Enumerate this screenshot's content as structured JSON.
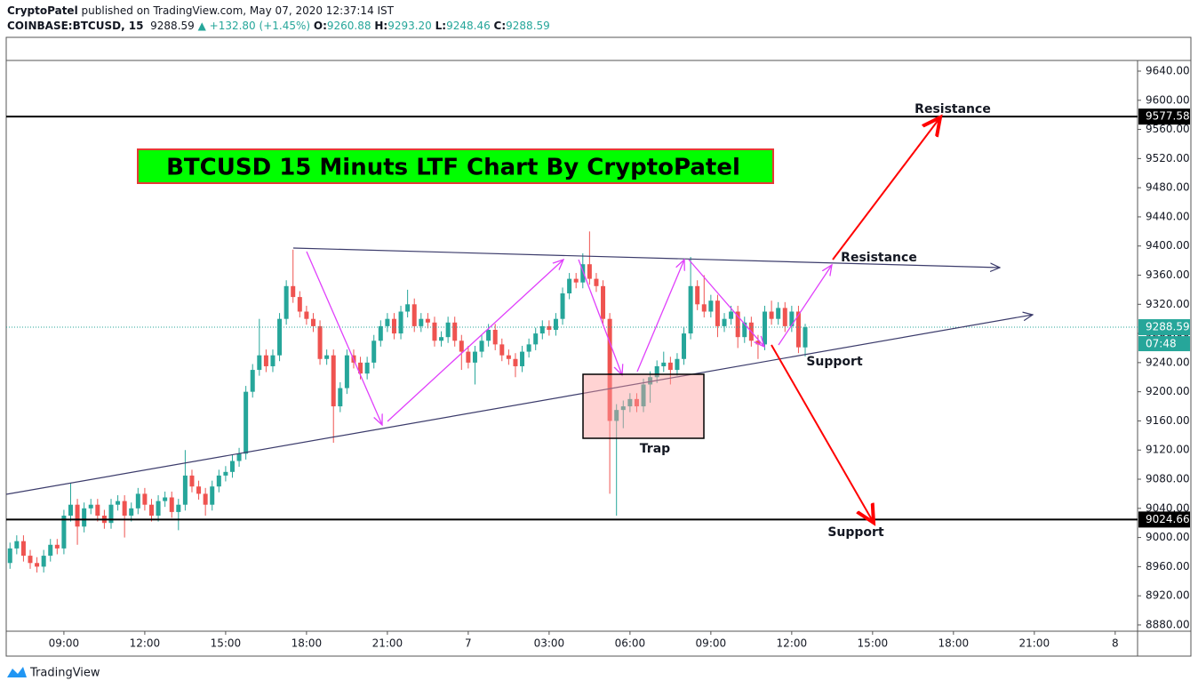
{
  "header": {
    "author": "CryptoPatel",
    "published": "published on TradingView.com, May 07, 2020 12:37:14 IST",
    "symbol": "COINBASE:BTCUSD, 15",
    "price": "9288.59",
    "change": "▲ +132.80 (+1.45%)",
    "o_label": "O:",
    "o": "9260.88",
    "h_label": "H:",
    "h": "9293.20",
    "l_label": "L:",
    "l": "9248.46",
    "c_label": "C:",
    "c": "9288.59"
  },
  "footer": {
    "brand": "TradingView"
  },
  "chart_data": {
    "type": "candlestick",
    "title": "BTCUSD 15 Minuts LTF Chart By CryptoPatel",
    "annotations": [
      "Resistance",
      "Resistance",
      "Support",
      "Support",
      "Trap"
    ],
    "x": [
      6.75,
      7,
      7.25,
      7.5,
      7.75,
      8,
      8.25,
      8.5,
      8.75,
      9,
      9.25,
      9.5,
      9.75,
      10,
      10.25,
      10.5,
      10.75,
      11,
      11.25,
      11.5,
      11.75,
      12,
      12.25,
      12.5,
      12.75,
      13,
      13.25,
      13.5,
      13.75,
      14,
      14.25,
      14.5,
      14.75,
      15,
      15.25,
      15.5,
      15.75,
      16,
      16.25,
      16.5,
      16.75,
      17,
      17.25,
      17.5,
      17.75,
      18,
      18.25,
      18.5,
      18.75,
      19,
      19.25,
      19.5,
      19.75,
      20,
      20.25,
      20.5,
      20.75,
      21,
      21.25,
      21.5,
      21.75,
      22,
      22.25,
      22.5,
      22.75,
      23,
      23.25,
      23.5,
      23.75,
      24,
      24.25,
      24.5,
      24.75,
      25,
      25.25,
      25.5,
      25.75,
      26,
      26.25,
      26.5,
      26.75,
      27,
      27.25,
      27.5,
      27.75,
      28,
      28.25,
      28.5,
      28.75,
      29,
      29.25,
      29.5,
      29.75,
      30,
      30.25,
      30.5,
      30.75,
      31,
      31.25,
      31.5,
      31.75,
      32,
      32.25,
      32.5,
      32.75,
      33,
      33.25,
      33.5,
      33.75,
      34,
      34.25,
      34.5,
      34.75,
      35,
      35.25,
      35.5,
      35.75,
      36,
      36.25,
      36.5
    ],
    "open": [
      8975,
      8965,
      8985,
      8995,
      8975,
      8965,
      8960,
      8975,
      8990,
      8985,
      9030,
      9045,
      9015,
      9040,
      9045,
      9030,
      9020,
      9045,
      9050,
      9030,
      9040,
      9060,
      9045,
      9030,
      9050,
      9055,
      9035,
      9045,
      9085,
      9070,
      9060,
      9045,
      9070,
      9085,
      9090,
      9105,
      9115,
      9200,
      9230,
      9250,
      9235,
      9250,
      9300,
      9345,
      9330,
      9310,
      9300,
      9290,
      9245,
      9250,
      9180,
      9205,
      9250,
      9240,
      9225,
      9240,
      9270,
      9290,
      9300,
      9280,
      9310,
      9320,
      9290,
      9300,
      9295,
      9270,
      9275,
      9295,
      9270,
      9255,
      9240,
      9255,
      9270,
      9285,
      9265,
      9250,
      9245,
      9235,
      9255,
      9265,
      9280,
      9290,
      9285,
      9300,
      9335,
      9355,
      9350,
      9375,
      9355,
      9345,
      9300,
      9160,
      9175,
      9180,
      9190,
      9180,
      9210,
      9220,
      9235,
      9240,
      9230,
      9245,
      9280,
      9345,
      9320,
      9310,
      9325,
      9290,
      9300,
      9310,
      9275,
      9295,
      9270,
      9265,
      9310,
      9300,
      9315,
      9290,
      9310,
      9260.88
    ],
    "high": [
      8983,
      8993,
      9003,
      9003,
      8983,
      8973,
      8983,
      8998,
      8998,
      9038,
      9075,
      9053,
      9048,
      9053,
      9053,
      9038,
      9053,
      9058,
      9058,
      9048,
      9068,
      9068,
      9053,
      9058,
      9063,
      9063,
      9053,
      9120,
      9093,
      9078,
      9068,
      9078,
      9093,
      9098,
      9113,
      9123,
      9208,
      9238,
      9300,
      9258,
      9258,
      9308,
      9353,
      9395,
      9338,
      9318,
      9308,
      9298,
      9258,
      9258,
      9213,
      9258,
      9258,
      9248,
      9248,
      9278,
      9298,
      9308,
      9308,
      9318,
      9340,
      9328,
      9308,
      9308,
      9303,
      9283,
      9303,
      9303,
      9278,
      9263,
      9263,
      9278,
      9293,
      9293,
      9273,
      9258,
      9253,
      9263,
      9273,
      9288,
      9298,
      9298,
      9308,
      9343,
      9363,
      9363,
      9390,
      9420,
      9363,
      9353,
      9308,
      9183,
      9188,
      9198,
      9198,
      9218,
      9228,
      9243,
      9255,
      9248,
      9253,
      9288,
      9385,
      9353,
      9360,
      9333,
      9333,
      9308,
      9318,
      9318,
      9303,
      9303,
      9278,
      9318,
      9325,
      9323,
      9323,
      9318,
      9318,
      9293.2
    ],
    "low": [
      8957,
      8957,
      8977,
      8967,
      8957,
      8952,
      8952,
      8967,
      8977,
      8977,
      9022,
      8990,
      9007,
      9032,
      9022,
      9012,
      9012,
      9037,
      9000,
      9022,
      9032,
      9037,
      9022,
      9022,
      9042,
      9027,
      9010,
      9037,
      9062,
      9052,
      9030,
      9037,
      9062,
      9077,
      9082,
      9097,
      9107,
      9192,
      9222,
      9227,
      9227,
      9242,
      9292,
      9322,
      9302,
      9292,
      9282,
      9237,
      9237,
      9130,
      9172,
      9197,
      9232,
      9217,
      9217,
      9232,
      9262,
      9282,
      9272,
      9272,
      9302,
      9282,
      9282,
      9287,
      9262,
      9262,
      9267,
      9262,
      9230,
      9232,
      9210,
      9247,
      9262,
      9257,
      9242,
      9237,
      9220,
      9227,
      9247,
      9257,
      9272,
      9277,
      9277,
      9292,
      9327,
      9342,
      9342,
      9347,
      9337,
      9292,
      9060,
      9030,
      9150,
      9172,
      9172,
      9172,
      9185,
      9212,
      9227,
      9210,
      9222,
      9237,
      9272,
      9312,
      9302,
      9302,
      9275,
      9282,
      9292,
      9260,
      9267,
      9262,
      9245,
      9257,
      9292,
      9292,
      9282,
      9282,
      9253,
      9248.46
    ],
    "close": [
      8965,
      8985,
      8995,
      8975,
      8965,
      8960,
      8975,
      8990,
      8985,
      9030,
      9045,
      9015,
      9040,
      9045,
      9030,
      9020,
      9045,
      9050,
      9030,
      9040,
      9060,
      9045,
      9030,
      9050,
      9055,
      9035,
      9045,
      9085,
      9070,
      9060,
      9045,
      9070,
      9085,
      9090,
      9105,
      9115,
      9200,
      9230,
      9250,
      9235,
      9250,
      9300,
      9345,
      9330,
      9310,
      9300,
      9290,
      9245,
      9250,
      9180,
      9205,
      9250,
      9240,
      9225,
      9240,
      9270,
      9290,
      9300,
      9280,
      9310,
      9320,
      9290,
      9300,
      9295,
      9270,
      9275,
      9295,
      9270,
      9255,
      9240,
      9255,
      9270,
      9285,
      9265,
      9250,
      9245,
      9235,
      9255,
      9265,
      9280,
      9290,
      9285,
      9300,
      9335,
      9355,
      9350,
      9375,
      9355,
      9345,
      9300,
      9160,
      9175,
      9180,
      9190,
      9180,
      9210,
      9220,
      9235,
      9240,
      9230,
      9245,
      9280,
      9345,
      9320,
      9310,
      9325,
      9290,
      9300,
      9310,
      9275,
      9295,
      9270,
      9265,
      9310,
      9300,
      9315,
      9290,
      9310,
      9261,
      9288.59
    ],
    "up_color": "#26a69a",
    "down_color": "#ef5350",
    "xlim": [
      6.86,
      48.83
    ],
    "xticks": [
      {
        "value": 9,
        "label": "09:00"
      },
      {
        "value": 12,
        "label": "12:00"
      },
      {
        "value": 15,
        "label": "15:00"
      },
      {
        "value": 18,
        "label": "18:00"
      },
      {
        "value": 21,
        "label": "21:00"
      },
      {
        "value": 24,
        "label": "7"
      },
      {
        "value": 27,
        "label": "03:00"
      },
      {
        "value": 30,
        "label": "06:00"
      },
      {
        "value": 33,
        "label": "09:00"
      },
      {
        "value": 36,
        "label": "12:00"
      },
      {
        "value": 39,
        "label": "15:00"
      },
      {
        "value": 42,
        "label": "18:00"
      },
      {
        "value": 45,
        "label": "21:00"
      },
      {
        "value": 48,
        "label": "8"
      }
    ],
    "ylim": [
      8871.4,
      9652.2
    ],
    "yticks": [
      {
        "value": 8880,
        "label": "8880.00"
      },
      {
        "value": 8920,
        "label": "8920.00"
      },
      {
        "value": 8960,
        "label": "8960.00"
      },
      {
        "value": 9000,
        "label": "9000.00"
      },
      {
        "value": 9040,
        "label": "9040.00"
      },
      {
        "value": 9080,
        "label": "9080.00"
      },
      {
        "value": 9120,
        "label": "9120.00"
      },
      {
        "value": 9160,
        "label": "9160.00"
      },
      {
        "value": 9200,
        "label": "9200.00"
      },
      {
        "value": 9240,
        "label": "9240.00"
      },
      {
        "value": 9280,
        "label": "9280.00"
      },
      {
        "value": 9320,
        "label": "9320.00"
      },
      {
        "value": 9360,
        "label": "9360.00"
      },
      {
        "value": 9400,
        "label": "9400.00"
      },
      {
        "value": 9440,
        "label": "9440.00"
      },
      {
        "value": 9480,
        "label": "9480.00"
      },
      {
        "value": 9520,
        "label": "9520.00"
      },
      {
        "value": 9560,
        "label": "9560.00"
      },
      {
        "value": 9600,
        "label": "9600.00"
      },
      {
        "value": 9640,
        "label": "9640.00"
      }
    ],
    "grid": false,
    "hlines": [
      9577.58,
      9024.66
    ],
    "hline_color": "#000000",
    "price_line_color": "#26a69a",
    "countdown": "07:48"
  }
}
